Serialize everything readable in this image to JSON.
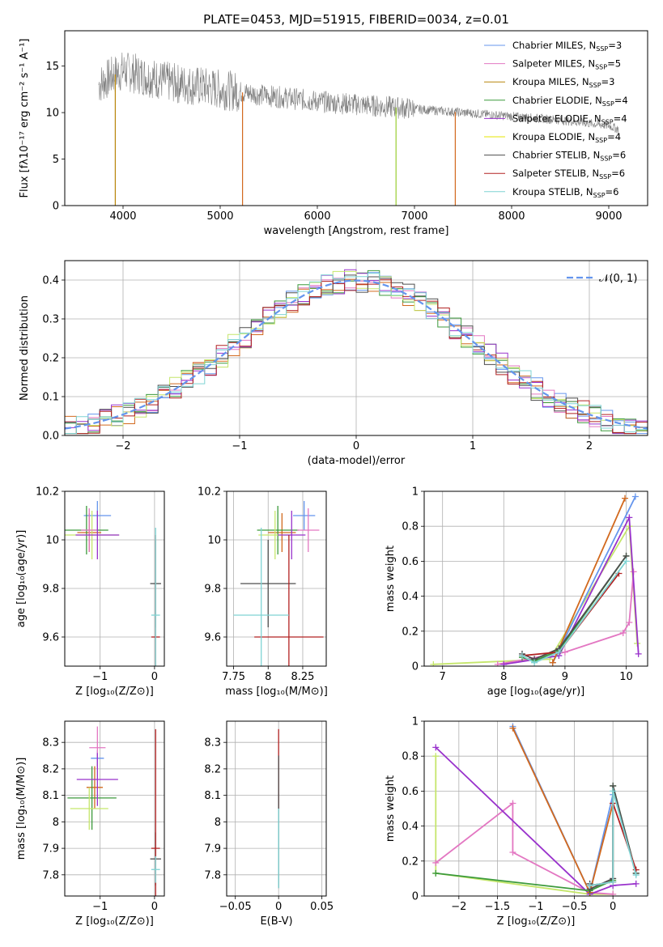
{
  "figure": {
    "title": "PLATE=0453, MJD=51915, FIBERID=0034, z=0.01"
  },
  "chart_data": [
    {
      "id": "spectrum",
      "type": "line",
      "xlabel": "wavelength [Angstrom, rest frame]",
      "ylabel": "Flux [fλ10⁻¹⁷ erg cm⁻² s⁻¹ A⁻¹]",
      "xlim": [
        3400,
        9400
      ],
      "ylim": [
        0,
        18.8
      ],
      "xticks": [
        4000,
        5000,
        6000,
        7000,
        8000,
        9000
      ],
      "yticks": [
        0,
        5,
        10,
        15
      ],
      "legend_position": "top-right",
      "legend": [
        {
          "label": "Chabrier MILES, N",
          "sub": "SSP",
          "tail": "=3",
          "color": "#6495ed"
        },
        {
          "label": "Salpeter MILES, N",
          "sub": "SSP",
          "tail": "=5",
          "color": "#e377c2"
        },
        {
          "label": "Kroupa MILES, N",
          "sub": "SSP",
          "tail": "=3",
          "color": "#b8860b"
        },
        {
          "label": "Chabrier ELODIE, N",
          "sub": "SSP",
          "tail": "=4",
          "color": "#3c9a3c"
        },
        {
          "label": "Salpeter ELODIE, N",
          "sub": "SSP",
          "tail": "=4",
          "color": "#9932cc"
        },
        {
          "label": "Kroupa ELODIE, N",
          "sub": "SSP",
          "tail": "=4",
          "color": "#e6e600"
        },
        {
          "label": "Chabrier STELIB, N",
          "sub": "SSP",
          "tail": "=6",
          "color": "#4d4d4d"
        },
        {
          "label": "Salpeter STELIB, N",
          "sub": "SSP",
          "tail": "=6",
          "color": "#b22222"
        },
        {
          "label": "Kroupa STELIB, N",
          "sub": "SSP",
          "tail": "=6",
          "color": "#7fd4d4"
        }
      ],
      "data_envelope": {
        "x": [
          3750,
          3900,
          4000,
          4200,
          4500,
          4800,
          5000,
          5500,
          6000,
          6500,
          7000,
          7500,
          8000,
          8500,
          9000,
          9100
        ],
        "y": [
          13.0,
          14.0,
          14.5,
          14.0,
          13.2,
          12.8,
          12.5,
          11.8,
          11.2,
          10.8,
          10.4,
          10.0,
          9.6,
          9.2,
          8.6,
          8.2
        ]
      },
      "model_drops": [
        {
          "x": 3920,
          "color": "#b8860b"
        },
        {
          "x": 5230,
          "color": "#d2691e"
        },
        {
          "x": 6810,
          "color": "#9acd32"
        },
        {
          "x": 7420,
          "color": "#d2691e"
        }
      ]
    },
    {
      "id": "residuals",
      "type": "line",
      "xlabel": "(data-model)/error",
      "ylabel": "Normed distribution",
      "xlim": [
        -2.5,
        2.5
      ],
      "ylim": [
        0,
        0.45
      ],
      "xticks": [
        -2,
        -1,
        0,
        1,
        2
      ],
      "yticks": [
        0.0,
        0.1,
        0.2,
        0.3,
        0.4
      ],
      "legend_position": "top-right",
      "legend_label": "𝒩(0, 1)",
      "legend_color": "#6495ed",
      "series_colors": [
        "#6495ed",
        "#e377c2",
        "#d2691e",
        "#3c9a3c",
        "#9932cc",
        "#c5e66b",
        "#4d4d4d",
        "#b22222",
        "#7fd4d4"
      ]
    },
    {
      "id": "age-vs-Z",
      "type": "scatter",
      "xlabel": "Z [log₁₀(Z/Z⊙)]",
      "ylabel": "age  [log₁₀(age/yr)]",
      "xlim": [
        -1.65,
        0.18
      ],
      "ylim": [
        9.48,
        10.2
      ],
      "xticks": [
        -1,
        0
      ],
      "yticks": [
        9.6,
        9.8,
        10.0,
        10.2
      ],
      "points": [
        {
          "x": -1.05,
          "y": 10.1,
          "xerr": 0.25,
          "yerr": 0.06,
          "color": "#6495ed"
        },
        {
          "x": -1.2,
          "y": 10.03,
          "xerr": 0.22,
          "yerr": 0.08,
          "color": "#d2691e"
        },
        {
          "x": -1.25,
          "y": 10.04,
          "xerr": 0.4,
          "yerr": 0.1,
          "color": "#3c9a3c"
        },
        {
          "x": -1.15,
          "y": 10.02,
          "xerr": 0.5,
          "yerr": 0.1,
          "color": "#c5e66b"
        },
        {
          "x": -1.2,
          "y": 10.04,
          "xerr": 0.15,
          "yerr": 0.09,
          "color": "#e377c2"
        },
        {
          "x": -1.05,
          "y": 10.02,
          "xerr": 0.4,
          "yerr": 0.1,
          "color": "#9932cc"
        },
        {
          "x": 0.02,
          "y": 9.82,
          "xerr": 0.1,
          "yerr": 0.18,
          "color": "#4d4d4d"
        },
        {
          "x": 0.02,
          "y": 9.6,
          "xerr": 0.08,
          "yerr": 0.42,
          "color": "#b22222"
        },
        {
          "x": 0.02,
          "y": 9.69,
          "xerr": 0.08,
          "yerr": 0.36,
          "color": "#7fd4d4"
        }
      ]
    },
    {
      "id": "age-vs-mass",
      "type": "scatter",
      "xlabel": "mass [log₁₀(M/M⊙)]",
      "ylabel": "",
      "xlim": [
        7.7,
        8.42
      ],
      "ylim": [
        9.48,
        10.2
      ],
      "xticks": [
        7.75,
        8.0,
        8.25
      ],
      "yticks": [
        9.6,
        9.8,
        10.0,
        10.2
      ],
      "points": [
        {
          "x": 8.26,
          "y": 10.1,
          "xerr": 0.08,
          "yerr": 0.06,
          "color": "#6495ed"
        },
        {
          "x": 8.1,
          "y": 10.03,
          "xerr": 0.1,
          "yerr": 0.08,
          "color": "#d2691e"
        },
        {
          "x": 8.07,
          "y": 10.04,
          "xerr": 0.15,
          "yerr": 0.1,
          "color": "#3c9a3c"
        },
        {
          "x": 8.05,
          "y": 10.02,
          "xerr": 0.12,
          "yerr": 0.1,
          "color": "#c5e66b"
        },
        {
          "x": 8.29,
          "y": 10.04,
          "xerr": 0.08,
          "yerr": 0.09,
          "color": "#e377c2"
        },
        {
          "x": 8.17,
          "y": 10.02,
          "xerr": 0.1,
          "yerr": 0.1,
          "color": "#9932cc"
        },
        {
          "x": 8.0,
          "y": 9.82,
          "xerr": 0.2,
          "yerr": 0.18,
          "color": "#4d4d4d"
        },
        {
          "x": 8.15,
          "y": 9.6,
          "xerr": 0.25,
          "yerr": 0.42,
          "color": "#b22222"
        },
        {
          "x": 7.95,
          "y": 9.69,
          "xerr": 0.2,
          "yerr": 0.36,
          "color": "#7fd4d4"
        }
      ]
    },
    {
      "id": "weight-vs-age",
      "type": "line",
      "xlabel": "age  [log₁₀(age/yr)]",
      "ylabel": "mass weight",
      "xlim": [
        6.7,
        10.35
      ],
      "ylim": [
        0,
        1.0
      ],
      "xticks": [
        7,
        8,
        9,
        10
      ],
      "yticks": [
        0.0,
        0.2,
        0.4,
        0.6,
        0.8,
        1.0
      ],
      "series": [
        {
          "color": "#c5e66b",
          "x": [
            6.85,
            8.75,
            10.05,
            10.18
          ],
          "y": [
            0.01,
            0.04,
            0.8,
            0.13
          ]
        },
        {
          "color": "#e377c2",
          "x": [
            7.9,
            9.0,
            9.95,
            10.05,
            10.12
          ],
          "y": [
            0.01,
            0.08,
            0.19,
            0.25,
            0.54
          ]
        },
        {
          "color": "#9932cc",
          "x": [
            8.0,
            8.9,
            10.05,
            10.2
          ],
          "y": [
            0.01,
            0.06,
            0.85,
            0.07
          ]
        },
        {
          "color": "#6495ed",
          "x": [
            8.8,
            10.15
          ],
          "y": [
            0.02,
            0.97
          ]
        },
        {
          "color": "#d2691e",
          "x": [
            8.8,
            9.98
          ],
          "y": [
            0.02,
            0.96
          ]
        },
        {
          "color": "#3c9a3c",
          "x": [
            8.3,
            8.5,
            8.9,
            10.0
          ],
          "y": [
            0.05,
            0.03,
            0.09,
            0.63
          ]
        },
        {
          "color": "#4d4d4d",
          "x": [
            8.3,
            8.5,
            8.9,
            10.0
          ],
          "y": [
            0.07,
            0.04,
            0.1,
            0.63
          ]
        },
        {
          "color": "#b22222",
          "x": [
            8.3,
            8.9,
            9.88
          ],
          "y": [
            0.06,
            0.08,
            0.53
          ]
        },
        {
          "color": "#7fd4d4",
          "x": [
            8.3,
            8.5,
            8.9,
            10.0
          ],
          "y": [
            0.06,
            0.02,
            0.08,
            0.6
          ]
        }
      ]
    },
    {
      "id": "mass-vs-Z",
      "type": "scatter",
      "xlabel": "Z [log₁₀(Z/Z⊙)]",
      "ylabel": "mass [log₁₀(M/M⊙)]",
      "xlim": [
        -1.65,
        0.18
      ],
      "ylim": [
        7.72,
        8.38
      ],
      "xticks": [
        -1,
        0
      ],
      "yticks": [
        7.8,
        7.9,
        8.0,
        8.1,
        8.2,
        8.3
      ],
      "points": [
        {
          "x": -1.05,
          "y": 8.24,
          "xerr": 0.12,
          "yerr": 0.03,
          "color": "#6495ed"
        },
        {
          "x": -1.1,
          "y": 8.13,
          "xerr": 0.15,
          "yerr": 0.08,
          "color": "#d2691e"
        },
        {
          "x": -1.15,
          "y": 8.09,
          "xerr": 0.45,
          "yerr": 0.12,
          "color": "#3c9a3c"
        },
        {
          "x": -1.2,
          "y": 8.05,
          "xerr": 0.35,
          "yerr": 0.08,
          "color": "#c5e66b"
        },
        {
          "x": -1.05,
          "y": 8.28,
          "xerr": 0.15,
          "yerr": 0.08,
          "color": "#e377c2"
        },
        {
          "x": -1.05,
          "y": 8.16,
          "xerr": 0.38,
          "yerr": 0.1,
          "color": "#9932cc"
        },
        {
          "x": 0.02,
          "y": 7.86,
          "xerr": 0.1,
          "yerr": 0.1,
          "color": "#4d4d4d"
        },
        {
          "x": 0.02,
          "y": 7.9,
          "xerr": 0.08,
          "yerr": 0.45,
          "color": "#b22222"
        },
        {
          "x": 0.02,
          "y": 7.82,
          "xerr": 0.08,
          "yerr": 0.05,
          "color": "#7fd4d4"
        }
      ]
    },
    {
      "id": "mass-vs-EBV",
      "type": "scatter",
      "xlabel": "E(B-V)",
      "ylabel": "",
      "xlim": [
        -0.06,
        0.055
      ],
      "ylim": [
        7.72,
        8.38
      ],
      "xticks": [
        -0.05,
        0.0,
        0.05
      ],
      "yticks": [
        7.8,
        7.9,
        8.0,
        8.1,
        8.2,
        8.3
      ],
      "points": [
        {
          "x": 0.0,
          "y": 8.2,
          "xerr": 0,
          "yerr": 0.15,
          "color": "#b22222"
        },
        {
          "x": 0.0,
          "y": 8.0,
          "xerr": 0,
          "yerr": 0.25,
          "color": "#4d4d4d"
        },
        {
          "x": 0.0,
          "y": 7.9,
          "xerr": 0,
          "yerr": 0.15,
          "color": "#7fd4d4"
        }
      ]
    },
    {
      "id": "weight-vs-Z",
      "type": "line",
      "xlabel": "Z [log₁₀(Z/Z⊙)]",
      "ylabel": "mass weight",
      "xlim": [
        -2.45,
        0.45
      ],
      "ylim": [
        0,
        1.0
      ],
      "xticks": [
        -2.0,
        -1.5,
        -1.0,
        -0.5,
        0.0
      ],
      "yticks": [
        0.0,
        0.2,
        0.4,
        0.6,
        0.8,
        1.0
      ],
      "series": [
        {
          "color": "#c5e66b",
          "x": [
            -2.3,
            -2.3,
            -0.3,
            0.0
          ],
          "y": [
            0.8,
            0.13,
            0.01,
            0.01
          ]
        },
        {
          "color": "#e377c2",
          "x": [
            -2.3,
            -1.3,
            -1.3,
            -0.3,
            0.0
          ],
          "y": [
            0.19,
            0.53,
            0.25,
            0.02,
            0.01
          ]
        },
        {
          "color": "#9932cc",
          "x": [
            -2.3,
            -0.3,
            0.0,
            0.3
          ],
          "y": [
            0.85,
            0.01,
            0.06,
            0.07
          ]
        },
        {
          "color": "#6495ed",
          "x": [
            -1.3,
            -0.3,
            0.0
          ],
          "y": [
            0.97,
            0.02,
            0.58
          ]
        },
        {
          "color": "#d2691e",
          "x": [
            -1.3,
            -0.3,
            0.0
          ],
          "y": [
            0.96,
            0.02,
            0.53
          ]
        },
        {
          "color": "#3c9a3c",
          "x": [
            -2.3,
            -0.3,
            0.0,
            0.0,
            0.3
          ],
          "y": [
            0.13,
            0.03,
            0.09,
            0.63,
            0.13
          ]
        },
        {
          "color": "#4d4d4d",
          "x": [
            -0.3,
            -0.3,
            0.0,
            0.0,
            0.3
          ],
          "y": [
            0.07,
            0.04,
            0.1,
            0.63,
            0.13
          ]
        },
        {
          "color": "#b22222",
          "x": [
            -0.3,
            0.0,
            0.0,
            0.3
          ],
          "y": [
            0.06,
            0.08,
            0.53,
            0.15
          ]
        },
        {
          "color": "#7fd4d4",
          "x": [
            -0.3,
            0.0,
            0.0,
            0.3
          ],
          "y": [
            0.06,
            0.08,
            0.6,
            0.12
          ]
        }
      ]
    }
  ]
}
